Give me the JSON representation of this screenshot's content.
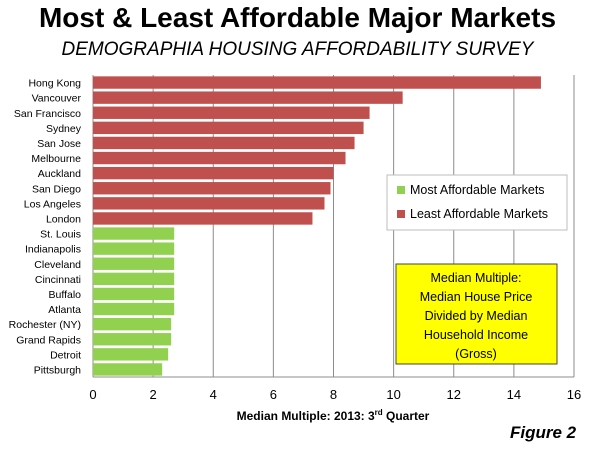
{
  "header": {
    "title": "Most & Least Affordable Major Markets",
    "subtitle": "DEMOGRAPHIA HOUSING AFFORDABILITY SURVEY"
  },
  "figure_label": "Figure 2",
  "note_box": {
    "lines": [
      "Median Multiple:",
      "Median House Price",
      "Divided by Median",
      "Household Income",
      "(Gross)"
    ],
    "background": "#FFFF00"
  },
  "chart_data": {
    "type": "bar",
    "orientation": "horizontal",
    "categories": [
      "Hong Kong",
      "Vancouver",
      "San Francisco",
      "Sydney",
      "San Jose",
      "Melbourne",
      "Auckland",
      "San Diego",
      "Los Angeles",
      "London",
      "St. Louis",
      "Indianapolis",
      "Cleveland",
      "Cincinnati",
      "Buffalo",
      "Atlanta",
      "Rochester (NY)",
      "Grand Rapids",
      "Detroit",
      "Pittsburgh"
    ],
    "values": [
      14.9,
      10.3,
      9.2,
      9.0,
      8.7,
      8.4,
      8.0,
      7.9,
      7.7,
      7.3,
      2.7,
      2.7,
      2.7,
      2.7,
      2.7,
      2.7,
      2.6,
      2.6,
      2.5,
      2.3
    ],
    "groups": [
      "least",
      "least",
      "least",
      "least",
      "least",
      "least",
      "least",
      "least",
      "least",
      "least",
      "most",
      "most",
      "most",
      "most",
      "most",
      "most",
      "most",
      "most",
      "most",
      "most"
    ],
    "series": [
      {
        "key": "most",
        "name": "Most Affordable Markets",
        "color": "#92D050"
      },
      {
        "key": "least",
        "name": "Least Affordable Markets",
        "color": "#C0504D"
      }
    ],
    "xlabel": "Median Multiple: 2013: 3",
    "xlabel_sup": "rd",
    "xlabel_suffix": " Quarter",
    "xlim": [
      0,
      16
    ],
    "xticks": [
      0,
      2,
      4,
      6,
      8,
      10,
      12,
      14,
      16
    ],
    "grid": true,
    "legend_position": "right-middle"
  }
}
